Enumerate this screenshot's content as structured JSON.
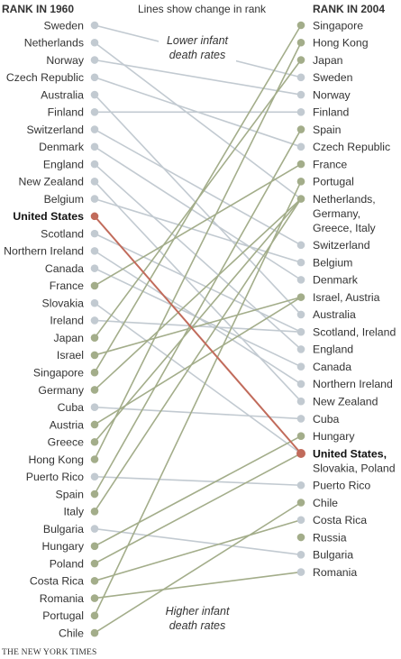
{
  "chart_data": {
    "type": "slope",
    "title": "",
    "left_header": "RANK IN 1960",
    "right_header": "RANK IN 2004",
    "subtitle": "Lines show change in rank",
    "annotation_top": [
      "Lower infant",
      "death rates"
    ],
    "annotation_bottom": [
      "Higher infant",
      "death rates"
    ],
    "credit": "THE NEW YORK TIMES",
    "highlight": "United States",
    "colors": {
      "line": "#c2cad1",
      "up": "#a3ad8a",
      "highlight": "#c16b5b",
      "dot_gray": "#c2cad1"
    },
    "countries_1960": [
      "Sweden",
      "Netherlands",
      "Norway",
      "Czech Republic",
      "Australia",
      "Finland",
      "Switzerland",
      "Denmark",
      "England",
      "New Zealand",
      "Belgium",
      "United States",
      "Scotland",
      "Northern Ireland",
      "Canada",
      "France",
      "Slovakia",
      "Ireland",
      "Japan",
      "Israel",
      "Singapore",
      "Germany",
      "Cuba",
      "Austria",
      "Greece",
      "Hong Kong",
      "Puerto Rico",
      "Spain",
      "Italy",
      "Bulgaria",
      "Hungary",
      "Poland",
      "Costa Rica",
      "Romania",
      "Portugal",
      "Chile"
    ],
    "rows_2004": [
      {
        "lines": [
          "Singapore"
        ],
        "dot": "up"
      },
      {
        "lines": [
          "Hong Kong"
        ],
        "dot": "up"
      },
      {
        "lines": [
          "Japan"
        ],
        "dot": "up"
      },
      {
        "lines": [
          "Sweden"
        ],
        "dot": "gray"
      },
      {
        "lines": [
          "Norway"
        ],
        "dot": "gray"
      },
      {
        "lines": [
          "Finland"
        ],
        "dot": "gray"
      },
      {
        "lines": [
          "Spain"
        ],
        "dot": "up"
      },
      {
        "lines": [
          "Czech Republic"
        ],
        "dot": "gray"
      },
      {
        "lines": [
          "France"
        ],
        "dot": "up"
      },
      {
        "lines": [
          "Portugal"
        ],
        "dot": "up"
      },
      {
        "lines": [
          "Netherlands,",
          "Germany,",
          "Greece, Italy"
        ],
        "dot": "up"
      },
      {
        "lines": [
          "Switzerland"
        ],
        "dot": "gray"
      },
      {
        "lines": [
          "Belgium"
        ],
        "dot": "gray"
      },
      {
        "lines": [
          "Denmark"
        ],
        "dot": "gray"
      },
      {
        "lines": [
          "Israel, Austria"
        ],
        "dot": "up"
      },
      {
        "lines": [
          "Australia"
        ],
        "dot": "gray"
      },
      {
        "lines": [
          "Scotland, Ireland"
        ],
        "dot": "gray"
      },
      {
        "lines": [
          "England"
        ],
        "dot": "gray"
      },
      {
        "lines": [
          "Canada"
        ],
        "dot": "gray"
      },
      {
        "lines": [
          "Northern Ireland"
        ],
        "dot": "gray"
      },
      {
        "lines": [
          "New Zealand"
        ],
        "dot": "gray"
      },
      {
        "lines": [
          "Cuba"
        ],
        "dot": "gray"
      },
      {
        "lines": [
          "Hungary"
        ],
        "dot": "up"
      },
      {
        "lines": [
          "United States,",
          "Slovakia, Poland"
        ],
        "dot": "highlight"
      },
      {
        "lines": [
          "Puerto Rico"
        ],
        "dot": "gray"
      },
      {
        "lines": [
          "Chile"
        ],
        "dot": "up"
      },
      {
        "lines": [
          "Costa Rica"
        ],
        "dot": "gray"
      },
      {
        "lines": [
          "Russia"
        ],
        "dot": "up"
      },
      {
        "lines": [
          "Bulgaria"
        ],
        "dot": "gray"
      },
      {
        "lines": [
          "Romania"
        ],
        "dot": "gray"
      }
    ],
    "links": [
      {
        "from": "Sweden",
        "to": "Sweden"
      },
      {
        "from": "Netherlands",
        "to": "Netherlands,"
      },
      {
        "from": "Norway",
        "to": "Norway"
      },
      {
        "from": "Czech Republic",
        "to": "Czech Republic"
      },
      {
        "from": "Australia",
        "to": "Australia"
      },
      {
        "from": "Finland",
        "to": "Finland"
      },
      {
        "from": "Switzerland",
        "to": "Switzerland"
      },
      {
        "from": "Denmark",
        "to": "Denmark"
      },
      {
        "from": "England",
        "to": "England"
      },
      {
        "from": "New Zealand",
        "to": "New Zealand"
      },
      {
        "from": "Belgium",
        "to": "Belgium"
      },
      {
        "from": "United States",
        "to": "United States,"
      },
      {
        "from": "Scotland",
        "to": "Scotland, Ireland"
      },
      {
        "from": "Northern Ireland",
        "to": "Northern Ireland"
      },
      {
        "from": "Canada",
        "to": "Canada"
      },
      {
        "from": "France",
        "to": "France"
      },
      {
        "from": "Slovakia",
        "to": "United States,"
      },
      {
        "from": "Ireland",
        "to": "Scotland, Ireland"
      },
      {
        "from": "Japan",
        "to": "Japan"
      },
      {
        "from": "Israel",
        "to": "Israel, Austria"
      },
      {
        "from": "Singapore",
        "to": "Singapore"
      },
      {
        "from": "Germany",
        "to": "Netherlands,"
      },
      {
        "from": "Cuba",
        "to": "Cuba"
      },
      {
        "from": "Austria",
        "to": "Israel, Austria"
      },
      {
        "from": "Greece",
        "to": "Netherlands,"
      },
      {
        "from": "Hong Kong",
        "to": "Hong Kong"
      },
      {
        "from": "Puerto Rico",
        "to": "Puerto Rico"
      },
      {
        "from": "Spain",
        "to": "Spain"
      },
      {
        "from": "Italy",
        "to": "Netherlands,"
      },
      {
        "from": "Bulgaria",
        "to": "Bulgaria"
      },
      {
        "from": "Hungary",
        "to": "Hungary"
      },
      {
        "from": "Poland",
        "to": "United States,"
      },
      {
        "from": "Costa Rica",
        "to": "Costa Rica"
      },
      {
        "from": "Romania",
        "to": "Romania"
      },
      {
        "from": "Portugal",
        "to": "Portugal"
      },
      {
        "from": "Chile",
        "to": "Chile"
      }
    ]
  }
}
